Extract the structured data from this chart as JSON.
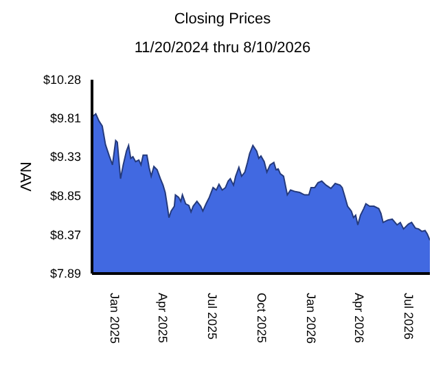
{
  "chart_data": {
    "type": "area",
    "title": "Closing Prices",
    "subtitle": "11/20/2024 thru 8/10/2026",
    "ylabel": "NAV",
    "x": [
      "2024-11-20",
      "2024-11-27",
      "2024-12-03",
      "2024-12-09",
      "2024-12-15",
      "2024-12-22",
      "2024-12-28",
      "2025-01-03",
      "2025-01-06",
      "2025-01-12",
      "2025-01-17",
      "2025-01-23",
      "2025-01-27",
      "2025-01-31",
      "2025-02-04",
      "2025-02-09",
      "2025-02-15",
      "2025-02-19",
      "2025-02-23",
      "2025-03-02",
      "2025-03-06",
      "2025-03-10",
      "2025-03-15",
      "2025-03-21",
      "2025-03-27",
      "2025-04-01",
      "2025-04-05",
      "2025-04-09",
      "2025-04-12",
      "2025-04-16",
      "2025-04-22",
      "2025-04-24",
      "2025-04-30",
      "2025-05-04",
      "2025-05-07",
      "2025-05-13",
      "2025-05-19",
      "2025-05-23",
      "2025-05-27",
      "2025-06-03",
      "2025-06-10",
      "2025-06-14",
      "2025-06-20",
      "2025-06-26",
      "2025-07-03",
      "2025-07-09",
      "2025-07-14",
      "2025-07-20",
      "2025-07-26",
      "2025-07-31",
      "2025-08-04",
      "2025-08-10",
      "2025-08-14",
      "2025-08-20",
      "2025-08-25",
      "2025-08-31",
      "2025-09-05",
      "2025-09-09",
      "2025-09-15",
      "2025-09-22",
      "2025-09-26",
      "2025-09-30",
      "2025-10-06",
      "2025-10-11",
      "2025-10-17",
      "2025-10-24",
      "2025-10-28",
      "2025-11-01",
      "2025-11-05",
      "2025-11-11",
      "2025-11-18",
      "2025-11-24",
      "2025-12-03",
      "2025-12-11",
      "2025-12-20",
      "2025-12-28",
      "2026-01-01",
      "2026-01-08",
      "2026-01-14",
      "2026-01-21",
      "2026-01-29",
      "2026-02-07",
      "2026-02-15",
      "2026-02-24",
      "2026-02-28",
      "2026-03-04",
      "2026-03-10",
      "2026-03-17",
      "2026-03-21",
      "2026-03-25",
      "2026-03-29",
      "2026-04-03",
      "2026-04-09",
      "2026-04-13",
      "2026-04-20",
      "2026-04-28",
      "2026-05-07",
      "2026-05-11",
      "2026-05-15",
      "2026-05-24",
      "2026-06-01",
      "2026-06-10",
      "2026-06-16",
      "2026-06-22",
      "2026-07-01",
      "2026-07-07",
      "2026-07-14",
      "2026-07-20",
      "2026-07-26",
      "2026-08-01",
      "2026-08-05",
      "2026-08-10"
    ],
    "series": [
      {
        "color": "#4169e1",
        "values": [
          9.82,
          9.86,
          9.77,
          9.71,
          9.48,
          9.34,
          9.23,
          9.53,
          9.51,
          9.06,
          9.23,
          9.4,
          9.47,
          9.31,
          9.33,
          9.27,
          9.29,
          9.23,
          9.35,
          9.35,
          9.2,
          9.09,
          9.21,
          9.17,
          9.06,
          8.98,
          8.89,
          8.72,
          8.58,
          8.66,
          8.72,
          8.86,
          8.83,
          8.78,
          8.86,
          8.75,
          8.73,
          8.65,
          8.72,
          8.78,
          8.72,
          8.66,
          8.75,
          8.83,
          8.95,
          8.92,
          8.99,
          8.92,
          8.95,
          9.03,
          9.06,
          8.98,
          9.09,
          9.2,
          9.09,
          9.14,
          9.26,
          9.37,
          9.47,
          9.4,
          9.31,
          9.34,
          9.27,
          9.14,
          9.23,
          9.26,
          9.17,
          9.18,
          9.12,
          9.09,
          8.86,
          8.92,
          8.9,
          8.89,
          8.86,
          8.86,
          8.95,
          8.95,
          9.01,
          9.03,
          8.98,
          8.94,
          9.0,
          8.98,
          8.95,
          8.86,
          8.72,
          8.66,
          8.58,
          8.61,
          8.49,
          8.61,
          8.69,
          8.75,
          8.72,
          8.72,
          8.69,
          8.63,
          8.52,
          8.55,
          8.56,
          8.49,
          8.52,
          8.44,
          8.5,
          8.52,
          8.45,
          8.44,
          8.41,
          8.42,
          8.38,
          8.3
        ]
      }
    ],
    "xlim": [
      "2024-11-20",
      "2026-08-10"
    ],
    "xticks": [
      {
        "value": "2025-01-01",
        "label": "Jan 2025"
      },
      {
        "value": "2025-04-01",
        "label": "Apr 2025"
      },
      {
        "value": "2025-07-01",
        "label": "Jul 2025"
      },
      {
        "value": "2025-10-01",
        "label": "Oct 2025"
      },
      {
        "value": "2026-01-01",
        "label": "Jan 2026"
      },
      {
        "value": "2026-04-01",
        "label": "Apr 2026"
      },
      {
        "value": "2026-07-01",
        "label": "Jul 2026"
      }
    ],
    "ylim": [
      7.89,
      10.28
    ],
    "yticks": [
      {
        "value": 7.89,
        "label": "$7.89"
      },
      {
        "value": 8.37,
        "label": "$8.37"
      },
      {
        "value": 8.85,
        "label": "$8.85"
      },
      {
        "value": 9.33,
        "label": "$9.33"
      },
      {
        "value": 9.81,
        "label": "$9.81"
      },
      {
        "value": 10.28,
        "label": "$10.28"
      }
    ]
  }
}
